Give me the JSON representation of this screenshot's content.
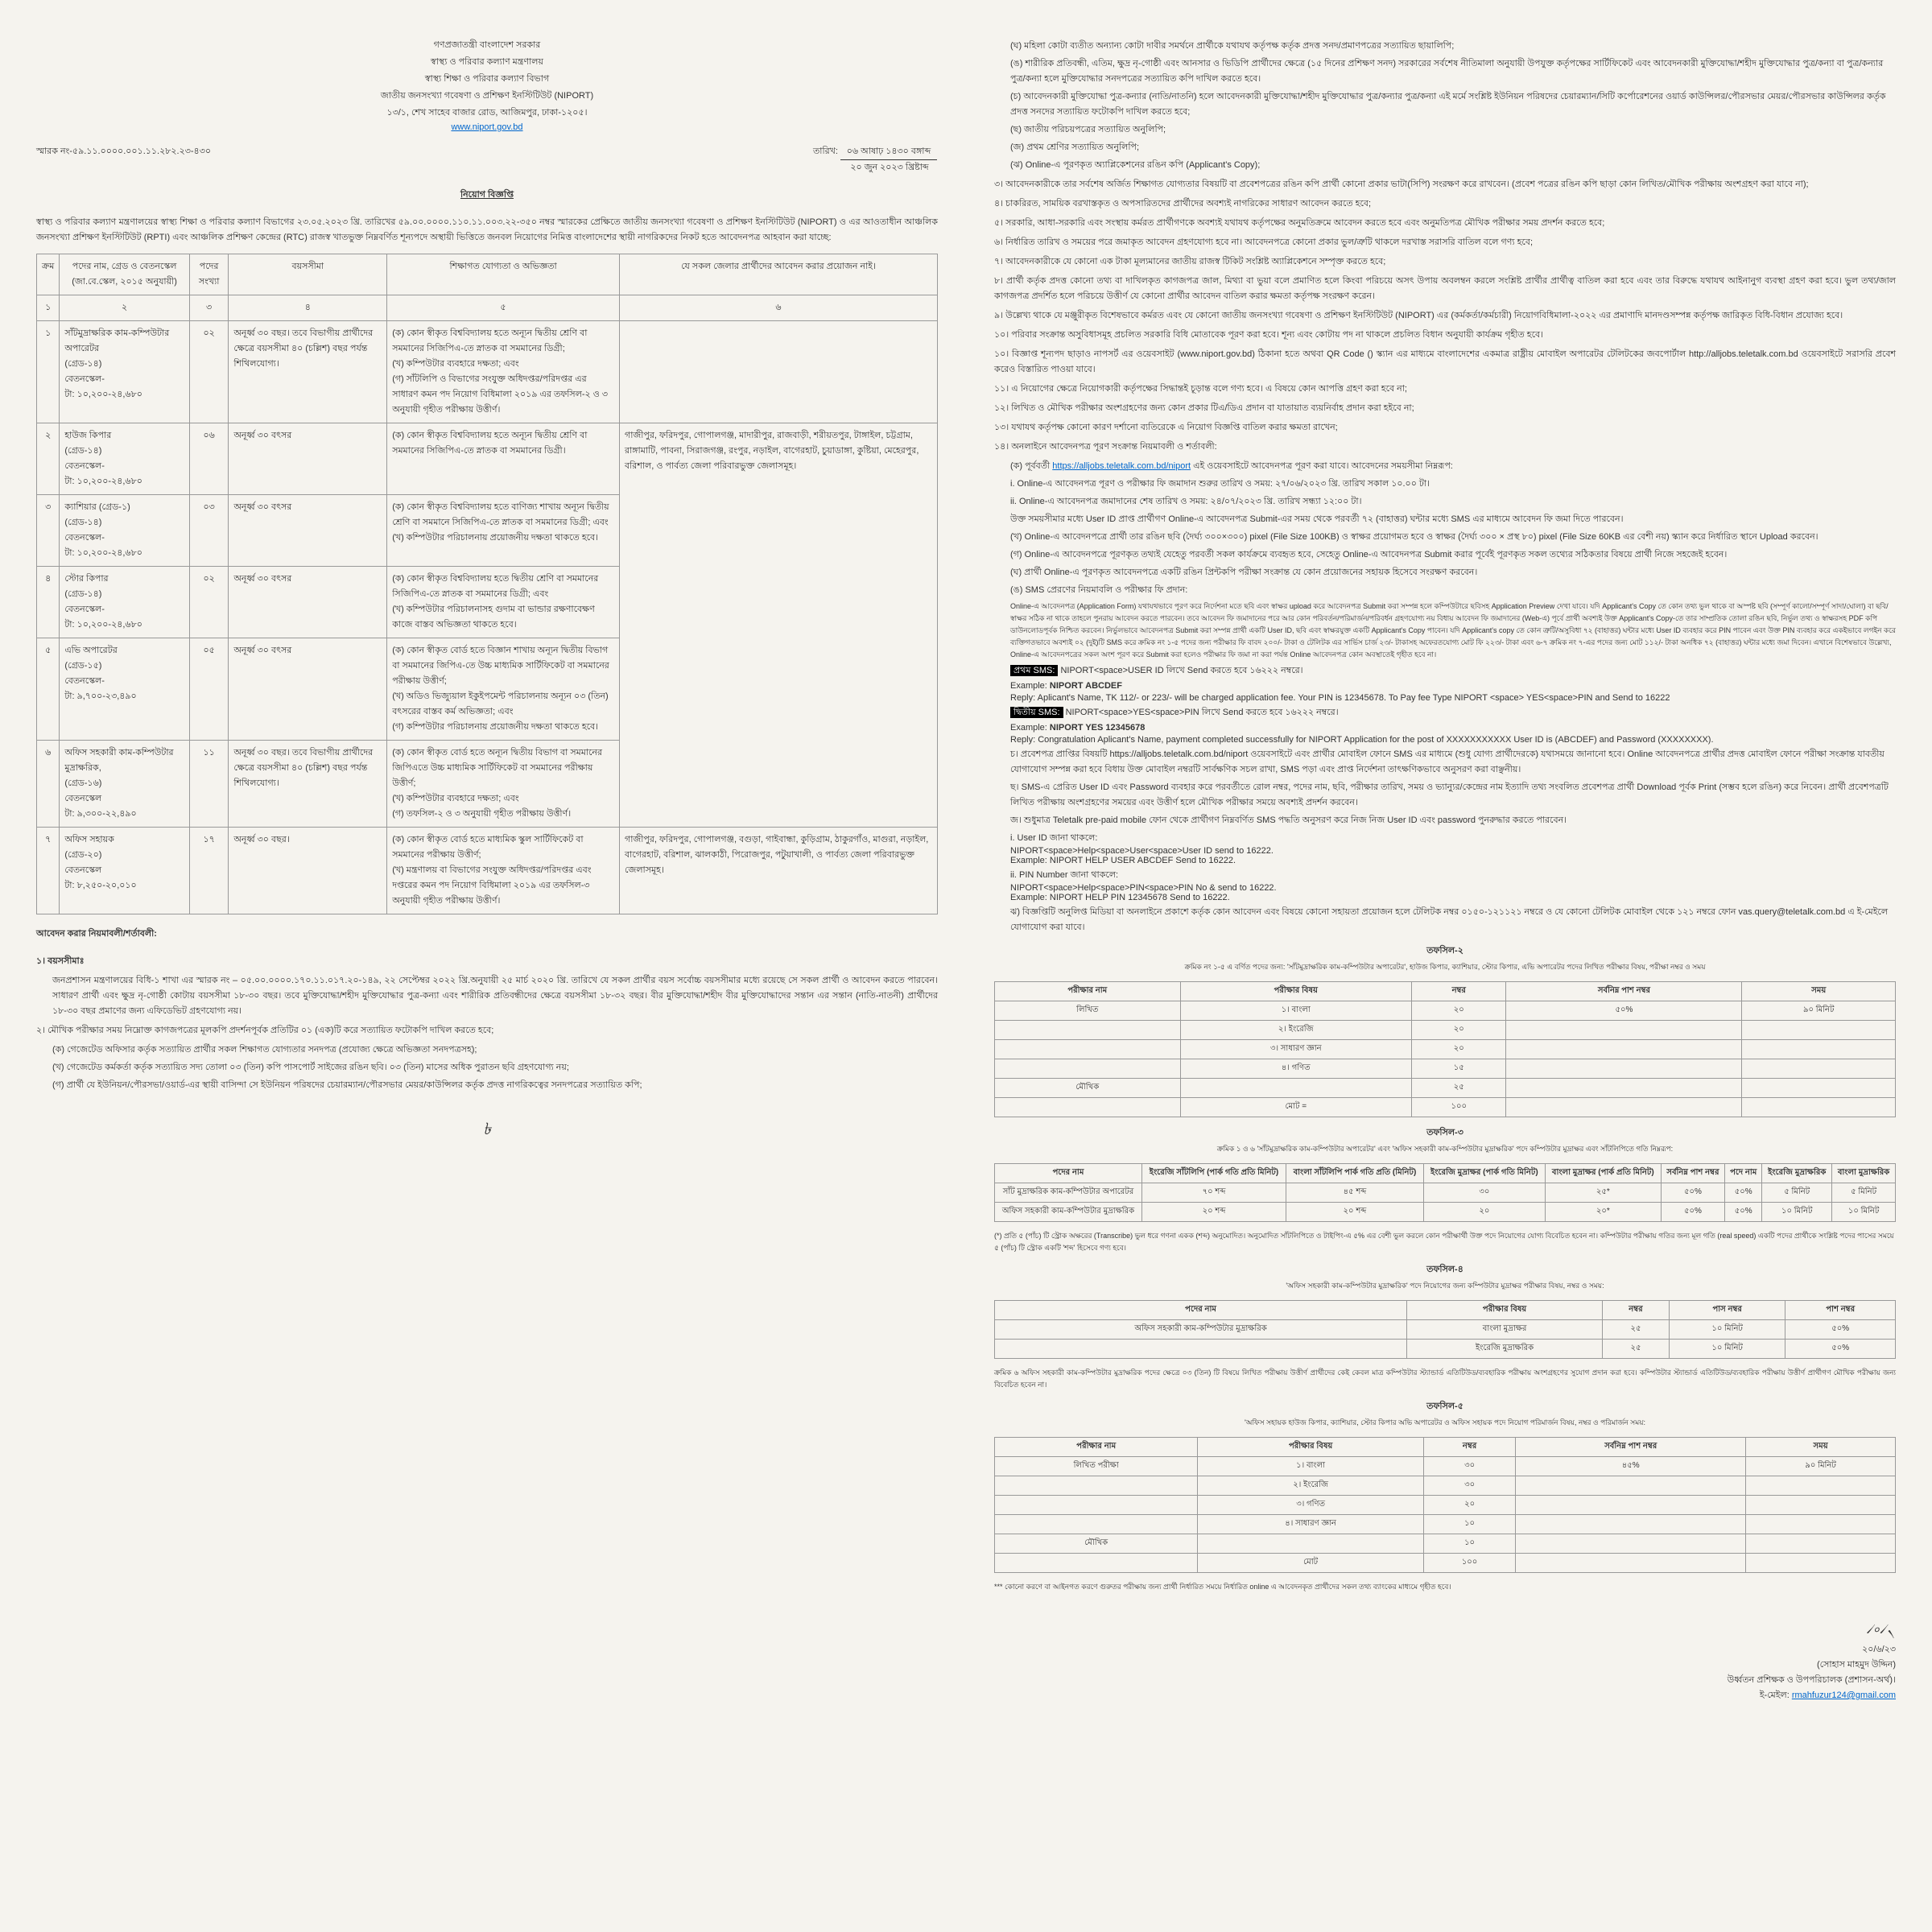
{
  "header": {
    "line1": "গণপ্রজাতন্ত্রী বাংলাদেশ সরকার",
    "line2": "স্বাস্থ্য ও পরিবার কল্যাণ মন্ত্রণালয়",
    "line3": "স্বাস্থ্য শিক্ষা ও পরিবার কল্যাণ বিভাগ",
    "line4": "জাতীয় জনসংখ্যা গবেষণা ও প্রশিক্ষণ ইনস্টিটিউট (NIPORT)",
    "line5": "১৩/১, শেখ সাহেব বাজার রোড, আজিমপুর, ঢাকা-১২০৫।",
    "website": "www.niport.gov.bd"
  },
  "meta": {
    "memo_label": "স্মারক নং-৫৯.১১.০০০০.০০১.১১.২৮২.২৩-৪৩০",
    "date_bn": "০৬ আষাঢ় ১৪৩০ বঙ্গাব্দ",
    "date_en": "২০ জুন ২০২৩ খ্রিষ্টাব্দ",
    "date_label": "তারিখ:"
  },
  "title": "নিয়োগ বিজ্ঞপ্তি",
  "intro": "স্বাস্থ্য ও পরিবার কল্যাণ মন্ত্রণালয়ের স্বাস্থ্য শিক্ষা ও পরিবার কল্যাণ বিভাগের ২৩.০৫.২০২৩ খ্রি. তারিখের ৫৯.০০.০০০০.১১০.১১.০০৩.২২-৩৫০ নম্বর স্মারকের প্রেক্ষিতে জাতীয় জনসংখ্যা গবেষণা ও প্রশিক্ষণ ইনস্টিটিউট (NIPORT) ও এর আওতাধীন আঞ্চলিক জনসংখ্যা প্রশিক্ষণ ইনস্টিটিউট (RPTI) এবং আঞ্চলিক প্রশিক্ষণ কেন্দ্রের (RTC) রাজস্ব খাতভুক্ত নিম্নবর্ণিত শূন্যপদে অস্থায়ী ভিত্তিতে জনবল নিয়োগের নিমিত্ত বাংলাদেশের স্থায়ী নাগরিকদের নিকট হতে আবেদনপত্র আহবান করা যাচ্ছে:",
  "tableHeaders": {
    "h1": "ক্রম",
    "h2": "পদের নাম, গ্রেড ও বেতনস্কেল (জা.বে.স্কেল, ২০১৫ অনুযায়ী)",
    "h3": "পদের সংখ্যা",
    "h4": "বয়সসীমা",
    "h5": "শিক্ষাগত যোগ্যতা ও অভিজ্ঞতা",
    "h6": "যে সকল জেলার প্রার্থীদের আবেদন করার প্রয়োজন নাই।"
  },
  "subHeaders": {
    "s1": "১",
    "s2": "২",
    "s3": "৩",
    "s4": "৪",
    "s5": "৫",
    "s6": "৬"
  },
  "jobs": [
    {
      "sl": "১",
      "post": "সাঁটমুদ্রাক্ষরিক কাম-কম্পিউটার অপারেটর\n(গ্রেড-১৪)\nবেতনস্কেল-\nটা: ১০,২০০-২৪,৬৮০",
      "count": "০২",
      "age": "অনূর্ধ্ব ৩০ বছর। তবে বিভাগীয় প্রার্থীদের ক্ষেত্রে বয়সসীমা ৪০ (চল্লিশ) বছর পর্যন্ত শিথিলযোগ্য।",
      "qual": "(ক) কোন স্বীকৃত বিশ্ববিদ্যালয় হতে অন্যূন দ্বিতীয় শ্রেণি বা সমমানের সিজিপিএ-তে স্নাতক বা সমমানের ডিগ্রী;\n(খ) কম্পিউটার ব্যবহারে দক্ষতা; এবং\n(গ) সাঁটলিপি ও বিভাগের সংযুক্ত অধিদপ্তর/পরিদপ্তর এর সাধারণ কমন পদ নিয়োগ বিধিমালা ২০১৯ এর তফসিল-২ ও ৩ অনুযায়ী গৃহীত পরীক্ষায় উত্তীর্ণ।",
      "area": ""
    },
    {
      "sl": "২",
      "post": "হাউজ কিপার\n(গ্রেড-১৪)\nবেতনস্কেল-\nটা: ১০,২০০-২৪,৬৮০",
      "count": "০৬",
      "age": "অনূর্ধ্ব ৩০ বৎসর",
      "qual": "(ক) কোন স্বীকৃত বিশ্ববিদ্যালয় হতে অন্যূন দ্বিতীয় শ্রেণি বা সমমানের সিজিপিএ-তে স্নাতক বা সমমানের ডিগ্রী।",
      "area": "গাজীপুর, ফরিদপুর, গোপালগঞ্জ, মাদারীপুর, রাজবাড়ী, শরীয়তপুর, টাঙ্গাইল, চট্টগ্রাম, রাঙ্গামাটি, পাবনা, সিরাজগঞ্জ, রংপুর, নড়াইল, বাগেরহাট, চুয়াডাঙ্গা, কুষ্টিয়া, মেহেরপুর, বরিশাল, ও পার্বত্য জেলা পরিবারভুক্ত জেলাসমূহ।"
    },
    {
      "sl": "৩",
      "post": "ক্যাশিয়ার (গ্রেড-১)\n(গ্রেড-১৪)\nবেতনস্কেল-\nটা: ১০,২০০-২৪,৬৮০",
      "count": "০৩",
      "age": "অনূর্ধ্ব ৩০ বৎসর",
      "qual": "(ক) কোন স্বীকৃত বিশ্ববিদ্যালয় হতে বাণিজ্য শাখায় অন্যূন দ্বিতীয় শ্রেণি বা সমমানে সিজিপিএ-তে স্নাতক বা সমমানের ডিগ্রী; এবং\n(খ) কম্পিউটার পরিচালনায় প্রয়োজনীয় দক্ষতা থাকতে হবে।",
      "area": ""
    },
    {
      "sl": "৪",
      "post": "স্টোর কিপার\n(গ্রেড-১৪)\nবেতনস্কেল-\nটা: ১০,২০০-২৪,৬৮০",
      "count": "০২",
      "age": "অনূর্ধ্ব ৩০ বৎসর",
      "qual": "(ক) কোন স্বীকৃত বিশ্ববিদ্যালয় হতে দ্বিতীয় শ্রেণি বা সমমানের সিজিপিএ-তে স্নাতক বা সমমানের ডিগ্রী; এবং\n(খ) কম্পিউটার পরিচালনাসহ গুদাম বা ভান্ডার রক্ষণাবেক্ষণ কাজে বাস্তব অভিজ্ঞতা থাকতে হবে।",
      "area": ""
    },
    {
      "sl": "৫",
      "post": "এভি অপারেটর\n(গ্রেড-১৫)\nবেতনস্কেল-\nটা: ৯,৭০০-২৩,৪৯০",
      "count": "০৫",
      "age": "অনূর্ধ্ব ৩০ বৎসর",
      "qual": "(ক) কোন স্বীকৃত বোর্ড হতে বিজ্ঞান শাখায় অন্যূন দ্বিতীয় বিভাগ বা সমমানের জিপিএ-তে উচ্চ মাধ্যমিক সার্টিফিকেট বা সমমানের পরীক্ষায় উত্তীর্ণ;\n(খ) অডিও ভিজ্যুয়াল ইকুইপমেন্ট পরিচালনায় অন্যূন ০৩ (তিন) বৎসরের বাস্তব কর্ম অভিজ্ঞতা; এবং\n(গ) কম্পিউটার পরিচালনায় প্রয়োজনীয় দক্ষতা থাকতে হবে।",
      "area": ""
    },
    {
      "sl": "৬",
      "post": "অফিস সহকারী কাম-কম্পিউটার মুদ্রাক্ষরিক,\n(গ্রেড-১৬)\nবেতনস্কেল\nটা: ৯,৩০০-২২,৪৯০",
      "count": "১১",
      "age": "অনূর্ধ্ব ৩০ বছর। তবে বিভাগীয় প্রার্থীদের ক্ষেত্রে বয়সসীমা ৪০ (চল্লিশ) বছর পর্যন্ত শিথিলযোগ্য।",
      "qual": "(ক) কোন স্বীকৃত বোর্ড হতে অন্যূন দ্বিতীয় বিভাগ বা সমমানের জিপিএতে উচ্চ মাধ্যমিক সার্টিফিকেট বা সমমানের পরীক্ষায় উত্তীর্ণ;\n(খ) কম্পিউটার ব্যবহারে দক্ষতা; এবং\n(গ) তফসিল-২ ও ৩ অনুযায়ী গৃহীত পরীক্ষায় উত্তীর্ণ।",
      "area": ""
    },
    {
      "sl": "৭",
      "post": "অফিস সহায়ক\n(গ্রেড-২০)\nবেতনস্কেল\nটা: ৮,২৫০-২০,০১০",
      "count": "১৭",
      "age": "অনূর্ধ্ব ৩০ বছর।",
      "qual": "(ক) কোন স্বীকৃত বোর্ড হতে মাধ্যমিক স্কুল সার্টিফিকেট বা সমমানের পরীক্ষায় উত্তীর্ণ;\n(খ) মন্ত্রণালয় বা বিভাগের সংযুক্ত অধিদপ্তর/পরিদপ্তর এবং দপ্তরের কমন পদ নিয়োগ বিধিমালা ২০১৯ এর তফসিল-৩ অনুযায়ী গৃহীত পরীক্ষায় উত্তীর্ণ।",
      "area": "গাজীপুর, ফরিদপুর, গোপালগঞ্জ, বগুড়া, গাইবান্ধা, কুড়িগ্রাম, ঠাকুরগাঁও, মাগুরা, নড়াইল, বাগেরহাট, বরিশাল, ঝালকাঠী, পিরোজপুর, পটুয়াখালী, ও পার্বত্য জেলা পরিবারভুক্ত জেলাসমূহ।"
    }
  ],
  "terms": {
    "heading": "আবেদন করার নিয়মাবলী/শর্তাবলী:",
    "item1_title": "১। বয়সসীমাঃ",
    "item1": "জনপ্রশাসন মন্ত্রণালয়ের বিধি-১ শাখা এর স্মারক নং – ০৫.০০.০০০০.১৭০.১১.০১৭.২০-১৪৯, ২২ সেপ্টেম্বর ২০২২ খ্রি.অনুযায়ী ২৫ মার্চ ২০২০ খ্রি. তারিখে যে সকল প্রার্থীর বয়স সর্বোচ্চ বয়সসীমার মধ্যে রয়েছে সে সকল প্রার্থী ও আবেদন করতে পারবেন। সাধারণ প্রার্থী এবং ক্ষুদ্র নৃ-গোষ্ঠী কোটায় বয়সসীমা ১৮-৩০ বছর। তবে মুক্তিযোদ্ধা/শহীদ মুক্তিযোদ্ধার পুত্র-কন্যা এবং শারীরিক প্রতিবন্ধীদের ক্ষেত্রে বয়সসীমা ১৮-৩২ বছর। বীর মুক্তিযোদ্ধা/শহীদ বীর মুক্তিযোদ্ধাদের সন্তান এর সন্তান (নাতি-নাতনী) প্রার্থীদের ১৮-৩০ বছর প্রমাণের জন্য এফিডেভিট গ্রহণযোগ্য নয়।",
    "item2": "২। মৌখিক পরীক্ষার সময় নিম্নোক্ত কাগজপত্রের মূলকপি প্রদর্শনপূর্বক প্রতিটির ০১ (এক)টি করে সত্যায়িত ফটোকপি দাখিল করতে হবে;",
    "item2a": "(ক) গেজেটেড অফিসার কর্তৃক সত্যায়িত প্রার্থীর সকল শিক্ষাগত যোগ্যতার সনদপত্র (প্রযোজ্য ক্ষেত্রে অভিজ্ঞতা সনদপত্রসহ);",
    "item2b": "(খ) গেজেটেড কর্মকর্তা কর্তৃক সত্যায়িত সদ্য তোলা ০৩ (তিন) কপি পাসপোর্ট সাইজের রঙিন ছবি। ০৩ (তিন) মাসের অধিক পুরাতন ছবি গ্রহণযোগ্য নয়;",
    "item2c": "(গ) প্রার্থী যে ইউনিয়ন/পৌরসভা/ওয়ার্ড-এর স্থায়ী বাসিন্দা সে ইউনিয়ন পরিষদের চেয়ারম্যান/পৌরসভার মেয়র/কাউন্সিলর কর্তৃক প্রদত্ত নাগরিকত্বের সনদপত্রের সত্যায়িত কপি;"
  },
  "page2": {
    "item2d": "(ঘ) মহিলা কোটা ব্যতীত অন্যান্য কোটা দাবীর সমর্থনে প্রার্থীকে যথাযথ কর্তৃপক্ষ কর্তৃক প্রদত্ত সনদ/প্রমাণপত্রের সত্যায়িত ছায়ালিপি;",
    "item2e": "(ঙ) শারীরিক প্রতিবন্ধী, এতিম, ক্ষুদ্র নৃ-গোষ্ঠী এবং আনসার ও ভিডিপি প্রার্থীদের ক্ষেত্রে (১৫ দিনের প্রশিক্ষণ সনদ) সরকারের সর্বশেষ নীতিমালা অনুযায়ী উপযুক্ত কর্তৃপক্ষের সার্টিফিকেট এবং আবেদনকারী মুক্তিযোদ্ধা/শহীদ মুক্তিযোদ্ধার পুত্র/কন্যা বা পুত্র/কন্যার পুত্র/কন্যা হলে মুক্তিযোদ্ধার সনদপত্রের সত্যায়িত কপি দাখিল করতে হবে।",
    "item2f": "(চ) আবেদনকারী মুক্তিযোদ্ধা পুত্র-কন্যার (নাতি/নাতনি) হলে আবেদনকারী মুক্তিযোদ্ধা/শহীদ মুক্তিযোদ্ধার পুত্র/কন্যার পুত্র/কন্যা এই মর্মে সংশ্লিষ্ট ইউনিয়ন পরিষদের চেয়ারম্যান/সিটি কর্পোরেশনের ওয়ার্ড কাউন্সিলর/পৌরসভার মেয়র/পৌরসভার কাউন্সিলর কর্তৃক প্রদত্ত সনদের সত্যায়িত ফটোকপি দাখিল করতে হবে;",
    "item2g": "(ছ) জাতীয় পরিচয়পত্রের সত্যায়িত অনুলিপি;",
    "item2h": "(জ) প্রথম শ্রেণির সত্যায়িত অনুলিপি;",
    "item2i": "(ঝ) Online-এ পূরণকৃত অ্যাপ্লিকেশনের রঙিন কপি (Applicant's Copy);",
    "item3": "৩। আবেদনকারীকে তার সর্বশেষ অর্জিত শিক্ষাগত যোগ্যতার বিষয়টি বা প্রবেশপত্রের রঙিন কপি প্রার্থী কোনো প্রকার ভাটা(সিপি) সংরক্ষণ করে রাখবেন। (প্রবেশ পত্রের রঙিন কপি ছাড়া কোন লিখিত/মৌখিক পরীক্ষায় অংশগ্রহণ করা যাবে না);",
    "item4": "৪। চাকরিরত, সাময়িক বরখাস্তকৃত ও অপসারিতদের প্রার্থীদের অবশ্যই নাগরিকের সাধারণ আবেদন করতে হবে;",
    "item5": "৫। সরকারি, আধা-সরকারি এবং সংস্থায় কর্মরত প্রার্থীগণকে অবশ্যই যথাযথ কর্তৃপক্ষের অনুমতিক্রমে আবেদন করতে হবে এবং অনুমতিপত্র মৌখিক পরীক্ষার সময় প্রদর্শন করতে হবে;",
    "item6": "৬। নির্ধারিত তারিখ ও সময়ের পরে জমাকৃত আবেদন গ্রহণযোগ্য হবে না। আবেদনপত্রে কোনো প্রকার ভুল/ত্রুটি থাকলে দরখাস্ত সরাসরি বাতিল বলে গণ্য হবে;",
    "item7": "৭। আবেদনকারীকে যে কোনো এক টাকা মূল্যমানের জাতীয় রাজস্ব টিকিট সংশ্লিষ্ট অ্যাপ্লিকেশনে সম্পৃক্ত করতে হবে;",
    "item8": "৮। প্রার্থী কর্তৃক প্রদত্ত কোনো তথ্য বা দাখিলকৃত কাগজপত্র জাল, মিথ্যা বা ভুয়া বলে প্রমাণিত হলে কিংবা পরিচয়ে অসৎ উপায় অবলম্বন করলে সংশ্লিষ্ট প্রার্থীর প্রার্থীত্ব বাতিল করা হবে এবং তার বিরুদ্ধে যথাযথ আইনানুগ ব্যবস্থা গ্রহণ করা হবে। ভুল তথ্য/জাল কাগজপত্র প্রদর্শিত হলে পরিচয়ে উত্তীর্ণ যে কোনো প্রার্থীর আবেদন বাতিল করার ক্ষমতা কর্তৃপক্ষ সংরক্ষণ করেন।",
    "item9": "৯। উল্লেখ্য থাকে যে মঞ্জুরীকৃত বিশেষভাবে কর্মরত এবং যে কোনো জাতীয় জনসংখ্যা গবেষণা ও প্রশিক্ষণ ইনস্টিটিউট (NIPORT) এর (কর্মকর্তা/কর্মচারী) নিয়োগবিধিমালা-২০২২ এর প্রমাণাদি মানদণ্ডসম্পন্ন কর্তৃপক্ষ জারিকৃত বিধি-বিধান প্রযোজ্য হবে।",
    "item10": "১০। পরিবার সংক্রান্ত অসুবিধাসমূহ প্রচলিত সরকারি বিধি মোতাবেক পূরণ করা হবে। শূন্য এবং কোটায় পদ না থাকলে প্রচলিত বিধান অনুযায়ী কার্যক্রম গৃহীত হবে।",
    "item10a": "১০। বিজ্ঞাপ্ত শূন্যপদ ছাড়াও নাপসর্ট এর ওয়েবসাইট (www.niport.gov.bd) ঠিকানা হতে অথবা QR Code () স্ক্যান এর মাধ্যমে বাংলাদেশের একমাত্র রাষ্ট্রীয় মোবাইল অপারেটর টেলিটকের জবপোর্টাল http://alljobs.teletalk.com.bd ওয়েবসাইটে সরাসরি প্রবেশ করেও বিস্তারিত পাওয়া যাবে।",
    "item11": "১১। এ নিয়োগের ক্ষেত্রে নিয়োগকারী কর্তৃপক্ষের সিদ্ধান্তই চূড়ান্ত বলে গণ্য হবে। এ বিষয়ে কোন আপত্তি গ্রহণ করা হবে না;",
    "item12": "১২। লিখিত ও মৌখিক পরীক্ষার অংশগ্রহণের জন্য কোন প্রকার টিএ/ডিএ প্রদান বা যাতায়াত ব্যয়নির্বাহ প্রদান করা হইবে না;",
    "item13": "১৩। যথাযথ কর্তৃপক্ষ কোনো কারণ দর্শানো ব্যতিরেকে এ নিয়োগ বিজ্ঞপ্তি বাতিল করার ক্ষমতা রাখেন;",
    "item14": "১৪। অনলাইনে আবেদনপত্র পূরণ সংক্রান্ত নিয়মাবলী ও শর্তাবলী:",
    "item14a_label": "(ক) পূর্ববর্তী",
    "item14a_link": "https://alljobs.teletalk.com.bd/niport",
    "item14a_rest": "এই ওয়েবসাইটে আবেদনপত্র পূরণ করা যাবে। আবেদনের সময়সীমা নিম্নরূপ:",
    "item14a_i": "i. Online-এ আবেদনপত্র পূরণ ও পরীক্ষার ফি জমাদান শুরুর তারিখ ও সময়: ২৭/০৬/২০২৩ খ্রি. তারিখ সকাল ১০.০০ টা।",
    "item14a_ii": "ii. Online-এ আবেদনপত্র জমাদানের শেষ তারিখ ও সময়: ২৪/০৭/২০২৩ খ্রি. তারিখ সন্ধ্যা ১২:০০ টা।",
    "item14a_iii": "উক্ত সময়সীমার মধ্যে User ID প্রাপ্ত প্রার্থীগণ Online-এ আবেদনপত্র Submit-এর সময় থেকে পরবর্তী ৭২ (বাহাত্তর) ঘন্টার মধ্যে SMS এর মাধ্যমে আবেদন ফি জমা দিতে পারবেন।",
    "item14b": "(খ) Online-এ আবেদনপত্রে প্রার্থী তার রঙিন ছবি (দৈর্ঘ্য ৩০০×৩০০) pixel (File Size 100KB) ও স্বাক্ষর প্রয়োগমত হবে ও স্বাক্ষর (দৈর্ঘ্য ৩০০ × প্রস্থ ৮০) pixel (File Size 60KB এর বেশী নয়) স্ক্যান করে নির্ধারিত স্থানে Upload করবেন।",
    "item14c": "(গ) Online-এ আবেদনপত্রে পূরণকৃত তথ্যই যেহেতু পরবর্তী সকল কার্যক্রমে ব্যবহৃত হবে, সেহেতু Online-এ আবেদনপত্র Submit করার পূর্বেই পূরণকৃত সকল তথ্যের সঠিকতার বিষয়ে প্রার্থী নিজে সহজেই হবেন।",
    "item14d": "(ঘ) প্রার্থী Online-এ পূরণকৃত আবেদনপত্রে একটি রঙিন প্রিন্টকপি পরীক্ষা সংক্রান্ত যে কোন প্রয়োজনের সহায়ক হিসেবে সংরক্ষণ করবেন।",
    "sms_heading": "(ঙ) SMS প্রেরণের নিয়মাবলি ও পরীক্ষার ফি প্রদান:",
    "sms_body": "Online-এ আবেদনপত্র (Application Form) যথাযথভাবে পূরণ করে নির্দেশনা মতে ছবি এবং স্বাক্ষর upload করে আবেদনপত্র Submit করা সম্পন্ন হলে কম্পিউটারে ছবিসহ Application Preview দেখা যাবে। যদি Applicant's Copy তে কোন তথ্য ভুল থাকে বা অস্পষ্ট ছবি (সম্পূর্ণ কালো/সম্পূর্ণ সাদা/ঘোলা) বা ছবি/স্বাক্ষর সঠিক না থাকে তাহলে পুনরায় আবেদন করতে পারবেন। তবে আবেদন ফি জমাদানের পরে আর কোন পরিবর্তন/পরিমার্জন/পরিবর্ধন গ্রহণযোগ্য নয় বিধায় আবেদন ফি জমাদানের (Web-এ) পূর্বে প্রার্থী অবশ্যই উক্ত Applicant's Copy-তে তার সাম্প্রতিক তোলা রঙিন ছবি, নির্ভুল তথ্য ও স্বাক্ষরসহ PDF কপি ডাউনলোডপূর্বক নিশ্চিত করবেন। নির্ভুলভাবে আবেদনপত্র Submit করা সম্পন্ন প্রার্থী একটি User ID, ছবি এবং স্বাক্ষরযুক্ত একটি Applicant's Copy পাবেন। যদি Applicant's copy তে কোন ত্রুটি/অসুবিধা ৭২ (বাহাত্তর) ঘন্টার মধ্যে User ID ব্যবহার করে PIN পাবেন এবং উক্ত PIN ব্যবহার করে একইভাবে লগইন করে ব্যক্তিগতভাবে অবশ্যই ০২ (দুই)টি SMS করে ক্রমিক নং ১-৫ পদের জন্য পরীক্ষার ফি বাবদ ২০০/- টাকা ও টেলিটক এর সার্ভিস চার্জ ২৩/- টাকাসহ অফেরতযোগ্য মোট ফি ২২৩/- টাকা এবং ৬-৭ ক্রমিক নং ৭-এর পদের জন্য মোট ১১২/- টাকা অনধিক ৭২ (বাহাত্তর) ঘন্টার মধ্যে জমা দিবেন। এখানে বিশেষভাবে উল্লেখ্য, Online-এ আবেদনপত্রের সকল অংশ পূরণ করে Submit করা হলেও পরীক্ষার ফি জমা না করা পর্যন্ত Online আবেদনপত্র কোন অবস্থাতেই গৃহীত হবে না।",
    "sms1_label": "প্রথম SMS:",
    "sms1_text": "NIPORT<space>USER ID লিখে Send করতে হবে ১৬২২২ নম্বরে।",
    "sms1_ex_label": "Example:",
    "sms1_ex": "NIPORT ABCDEF",
    "sms1_reply": "Reply: Aplicant's Name, TK 112/- or 223/- will be charged application fee. Your PIN is 12345678. To Pay fee Type NIPORT <space> YES<space>PIN and Send to 16222",
    "sms2_label": "দ্বিতীয় SMS:",
    "sms2_text": "NIPORT<space>YES<space>PIN লিখে Send করতে হবে ১৬২২২ নম্বরে।",
    "sms2_ex_label": "Example:",
    "sms2_ex": "NIPORT YES 12345678",
    "sms2_reply": "Reply: Congratulation Aplicant's Name, payment completed successfully for NIPORT Application for the post of XXXXXXXXXXX User ID is (ABCDEF) and Password (XXXXXXXX).",
    "item14f": "চ। প্রবেশপত্র প্রাপ্তির বিষয়টি https://alljobs.teletalk.com.bd/niport ওয়েবসাইটে এবং প্রার্থীর মোবাইল ফোনে SMS এর মাধ্যমে (শুধু যোগ্য প্রার্থীদেরকে) যথাসময়ে জানানো হবে। Online আবেদনপত্রে প্রার্থীর প্রদত্ত মোবাইল ফোনে পরীক্ষা সংক্রান্ত যাবতীয় যোগাযোগ সম্পন্ন করা হবে বিধায় উক্ত মোবাইল নম্বরটি সার্বক্ষণিক সচল রাখা, SMS পড়া এবং প্রাপ্ত নির্দেশনা তাৎক্ষণিকভাবে অনুসরণ করা বাঞ্ছনীয়।",
    "item14g": "ছ। SMS-এ প্রেরিত User ID এবং Password ব্যবহার করে পরবর্তীতে রোল নম্বর, পদের নাম, ছবি, পরীক্ষার তারিখ, সময় ও ভ্যান্যুর/কেন্দ্রের নাম ইত্যাদি তথ্য সংবলিত প্রবেশপত্র প্রার্থী Download পূর্বক Print (সম্ভব হলে রঙিন) করে নিবেন। প্রার্থী প্রবেশপত্রটি লিখিত পরীক্ষায় অংশগ্রহণের সময়ের এবং উত্তীর্ণ হলে মৌখিক পরীক্ষার সময়ে অবশ্যই প্রদর্শন করবেন।",
    "item14h": "জ। শুধুমাত্র Teletalk pre-paid mobile ফোন থেকে প্রার্থীগণ নিম্নবর্ণিত SMS পদ্ধতি অনুসরণ করে নিজ নিজ User ID এবং password পুনরুদ্ধার করতে পারবেন।",
    "item14h_i": "i. User ID জানা থাকলে:\nNIPORT<space>Help<space>User<space>User ID send to 16222.\nExample: NIPORT HELP USER ABCDEF Send to 16222.",
    "item14h_ii": "ii. PIN Number জানা থাকলে:\nNIPORT<space>Help<space>PIN<space>PIN No & send to 16222.\nExample: NIPORT HELP PIN 12345678 Send to 16222.",
    "item14i": "ঝ) বিজ্ঞপ্তিটি অনুলিপ্ত মিডিয়া বা অনলাইনে প্রকাশে কর্তৃক কোন আবেদন এবং বিষয়ে কোনো সহায়তা প্রয়োজন হলে টেলিটক নম্বর ০১৫০-১২১১২১ নম্বরে ও যে কোনো টেলিটক মোবাইল থেকে ১২১ নম্বরে ফোন vas.query@teletalk.com.bd এ ই-মেইলে যোগাযোগ করা যাবে।"
  },
  "schedules": {
    "sch2_title": "তফসিল-২",
    "sch3_title": "তফসিল-৩",
    "sch4_title": "তফসিল-৪",
    "sch5_title": "তফসিল-৫"
  },
  "sch2": {
    "note": "ক্রমিক নং ১-৫ এ বর্ণিত পদের জন্য: 'সাঁটমুদ্রাক্ষরিক কাম-কম্পিউটার অপারেটর', হাউজ কিপার, ক্যাশিয়ার, স্টোর কিপার, এভি অপারেটর পদের লিখিত পরীক্ষার বিষয়, পরীক্ষা নম্বর ও সময়",
    "headers": [
      "পরীক্ষার নাম",
      "পরীক্ষার বিষয়",
      "নম্বর",
      "সর্বনিম্ন পাশ নম্বর",
      "সময়"
    ],
    "rows": [
      [
        "লিখিত",
        "১। বাংলা",
        "২০",
        "৫০%",
        "৯০ মিনিট"
      ],
      [
        "",
        "২। ইংরেজি",
        "২০",
        "",
        ""
      ],
      [
        "",
        "৩। সাধারণ জ্ঞান",
        "২০",
        "",
        ""
      ],
      [
        "",
        "৪। গণিত",
        "১৫",
        "",
        ""
      ],
      [
        "মৌখিক",
        "",
        "২৫",
        "",
        ""
      ],
      [
        "",
        "মোট =",
        "১০০",
        "",
        ""
      ]
    ]
  },
  "sch3": {
    "note": "ক্রমিক ১ ও ৬ 'সাঁটমুদ্রাক্ষরিক কাম-কম্পিউটার অপারেটর' এবং 'অফিস সহকারী কাম-কম্পিউটার মুদ্রাক্ষরিক' পদে কম্পিউটার মুদ্রাক্ষর এবং সাঁটলিপিতে গতি নিম্নরূপ:",
    "headers": [
      "পদের নাম",
      "ইংরেজি সাঁটলিপি (পার্ক গতি প্রতি মিনিট)",
      "বাংলা সাঁটলিপি পার্ক গতি প্রতি (মিনিট)",
      "ইংরেজি মুদ্রাক্ষর (পার্ক গতি মিনিট)",
      "বাংলা মুদ্রাক্ষর (পার্ক প্রতি মিনিট)",
      "সর্বনিম্ন পাশ নম্বর",
      "পদে নাম",
      "ইংরেজি মুদ্রাক্ষরিক",
      "বাংলা মুদ্রাক্ষরিক"
    ],
    "rows": [
      [
        "সাঁট মুদ্রাক্ষরিক কাম-কম্পিউটার অপারেটর",
        "৭০ শব্দ",
        "৪৫ শব্দ",
        "৩০",
        "২৫*",
        "৫০%",
        "৫০%",
        "৫ মিনিট",
        "৫ মিনিট"
      ],
      [
        "অফিস সহকারী কাম-কম্পিউটার মুদ্রাক্ষরিক",
        "২০ শব্দ",
        "২০ শব্দ",
        "২০",
        "২০*",
        "৫০%",
        "৫০%",
        "১০ মিনিট",
        "১০ মিনিট"
      ]
    ],
    "footnote": "(*) প্রতি ৫ (পাঁচ) টি স্ট্রোক অক্ষরের (Transcribe) ভুল ধরে গণনা একক (শব্দ) অনুমোদিত। অনুমোদিত সাঁটলিপিতে ও টাইপিং-এ ৫% এর বেশী ভুল করলে কোন পরীক্ষার্থী উক্ত পদে নিয়োগের যোগ্য বিবেচিত হবেন না। কম্পিউটার পরীক্ষায় গতির জন্য মূল গতি (real speed) একটি পদের প্রার্থীকে সংশ্লিষ্ট পদের পাসের সময়ে ৫ (পাঁচ) টি স্ট্রোক একটি 'শব্দ' হিসেবে গণ্য হবে।"
  },
  "sch4": {
    "note": "'অফিস সহকারী কাম-কম্পিউটার মুদ্রাক্ষরিক' পদে নিয়োগের জন্য কম্পিউটার মুদ্রাক্ষর পরীক্ষার বিষয়, নম্বর ও সময়:",
    "headers": [
      "পদের নাম",
      "পরীক্ষার বিষয়",
      "নম্বর",
      "পাস নম্বর",
      "পাশ নম্বর"
    ],
    "rows": [
      [
        "অফিস সহকারী কাম-কম্পিউটার মুদ্রাক্ষরিক",
        "বাংলা মুদ্রাক্ষর",
        "২৫",
        "১০ মিনিট",
        "৫০%"
      ],
      [
        "",
        "ইংরেজি মুদ্রাক্ষরিক",
        "২৫",
        "১০ মিনিট",
        "৫০%"
      ]
    ]
  },
  "sch4_note": "ক্রমিক ৬ অফিস সহকারী কাম-কম্পিউটার মুদ্রাক্ষরিক পদের ক্ষেত্রে ০৩ (তিন) টি বিষয়ে লিখিত পরীক্ষায় উত্তীর্ণ প্রার্থীদের কেই কেবল মাত্র কম্পিউটার স্ট্যান্ডার্ড এতিটিউড/ব্যবহারিক পরীক্ষায় অংশগ্রহণের সুযোগ প্রদান করা হবে। কম্পিউটার স্ট্যান্ডার্ড এতিটিউড/ব্যবহারিক পরীক্ষায় উত্তীর্ণ প্রার্থীগণ মৌখিক পরীক্ষায় জন্য বিবেচিত হবেন না।",
  "sch5": {
    "note": "'অফিস সহায়ক হাউজ কিপার, ক্যাশিয়ার, স্টোর কিপার অভি অপারেটর ও অফিস সহায়ক পদে নিয়োগ পরিমার্জন বিষয়, নম্বর ও পরিমার্জন সময়:",
    "headers": [
      "পরীক্ষার নাম",
      "পরীক্ষার বিষয়",
      "নম্বর",
      "সর্বনিম্ন পাশ নম্বর",
      "সময়"
    ],
    "rows": [
      [
        "লিখিত পরীক্ষা",
        "১। বাংলা",
        "৩০",
        "৪৫%",
        "৯০ মিনিট"
      ],
      [
        "",
        "২। ইংরেজি",
        "৩০",
        "",
        ""
      ],
      [
        "",
        "৩। গণিত",
        "২০",
        "",
        ""
      ],
      [
        "",
        "৪। সাধারণ জ্ঞান",
        "১০",
        "",
        ""
      ],
      [
        "মৌখিক",
        "",
        "১০",
        "",
        ""
      ],
      [
        "",
        "মোট",
        "১০০",
        "",
        ""
      ]
    ]
  },
  "footer_note": "*** কোনো করণে বা আইনগত করণে গুরুতর পরীক্ষায় জন্য প্রার্থী নির্ধারিত সময়ে নির্ধারিত online এ আবেদনকৃত প্রার্থীদের সকল তথ্য ব্যাংকের মাধ্যমে গৃহীত হবে।",
  "signature": {
    "name": "(সোহাস মাহমুদ উদ্দিন)",
    "title": "উর্ধ্বতন প্রশিক্ষক ও উপপরিচালক (প্রশাসন-অর্থ)।",
    "date": "২০/৬/২৩",
    "email_label": "ই-মেইল: ",
    "email": "rmahfuzur124@gmail.com"
  }
}
